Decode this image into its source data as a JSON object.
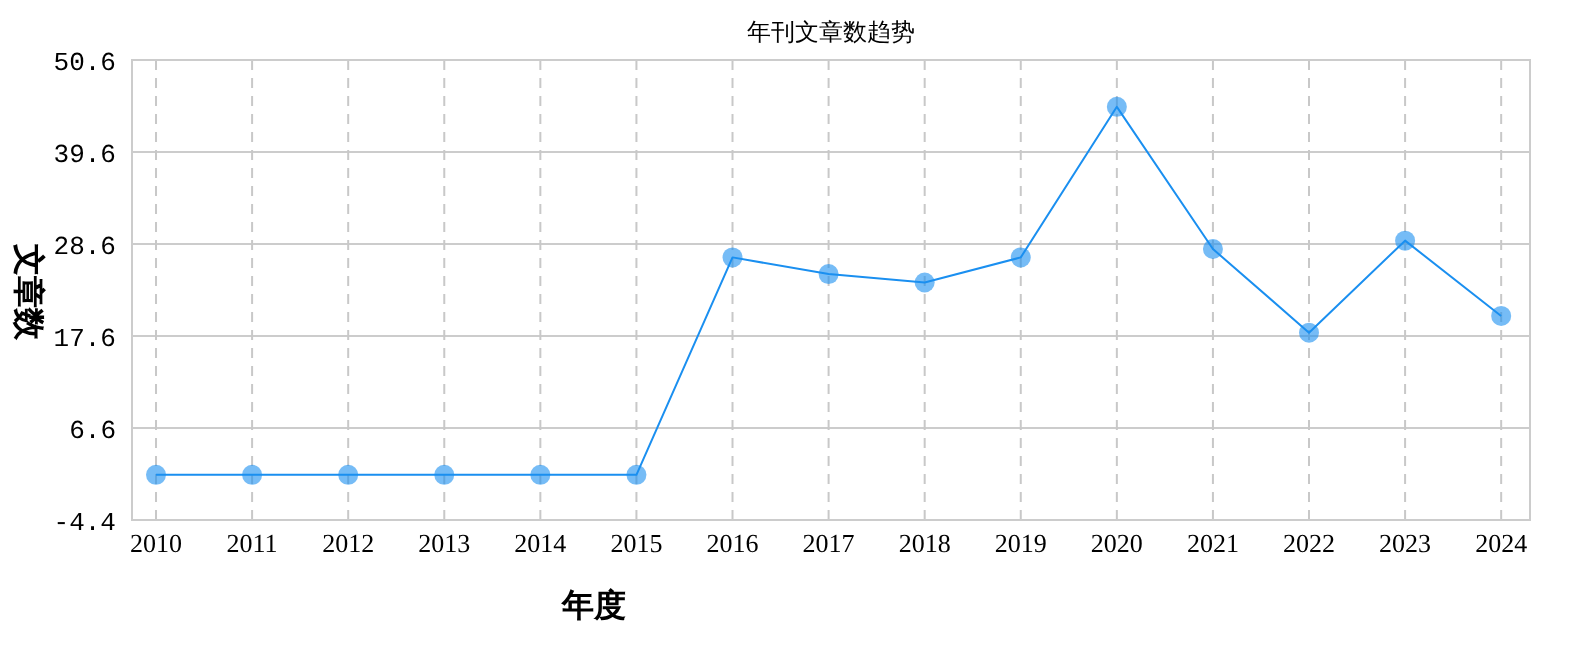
{
  "chart_data": {
    "type": "line",
    "title": "年刊文章数趋势",
    "xlabel": "年度",
    "ylabel": "文章数",
    "categories": [
      "2010",
      "2011",
      "2012",
      "2013",
      "2014",
      "2015",
      "2016",
      "2017",
      "2018",
      "2019",
      "2020",
      "2021",
      "2022",
      "2023",
      "2024"
    ],
    "series": [
      {
        "color": "#1a8ff0",
        "values": [
          1,
          1,
          1,
          1,
          1,
          1,
          27,
          25,
          24,
          27,
          45,
          28,
          18,
          29,
          20
        ]
      }
    ],
    "ylim": [
      -4.4,
      50.6
    ],
    "yticks": [
      -4.4,
      6.6,
      17.6,
      28.6,
      39.6,
      50.6
    ],
    "grid": true,
    "marker": "circle",
    "line_style": "solid"
  }
}
